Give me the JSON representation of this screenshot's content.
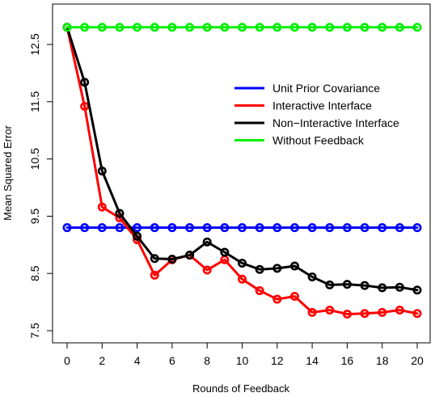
{
  "chart_data": {
    "type": "line",
    "title": "",
    "xlabel": "Rounds of Feedback",
    "ylabel": "Mean Squared Error",
    "xlim": [
      0,
      20
    ],
    "ylim": [
      7.5,
      12.8
    ],
    "xticks": [
      0,
      2,
      4,
      6,
      8,
      10,
      12,
      14,
      16,
      18,
      20
    ],
    "xtick_labels": [
      "0",
      "2",
      "4",
      "6",
      "8",
      "10",
      "12",
      "14",
      "16",
      "18",
      "20"
    ],
    "yticks": [
      7.5,
      8.5,
      9.5,
      10.5,
      11.5,
      12.5
    ],
    "ytick_labels": [
      "7.5",
      "8.5",
      "9.5",
      "10.5",
      "11.5",
      "12.5"
    ],
    "grid": false,
    "legend_position": "right-center",
    "x": [
      0,
      1,
      2,
      3,
      4,
      5,
      6,
      7,
      8,
      9,
      10,
      11,
      12,
      13,
      14,
      15,
      16,
      17,
      18,
      19,
      20
    ],
    "series": [
      {
        "name": "Unit Prior Covariance",
        "color": "#0000ff",
        "values": [
          9.3,
          9.3,
          9.3,
          9.3,
          9.3,
          9.3,
          9.3,
          9.3,
          9.3,
          9.3,
          9.3,
          9.3,
          9.3,
          9.3,
          9.3,
          9.3,
          9.3,
          9.3,
          9.3,
          9.3,
          9.3
        ]
      },
      {
        "name": "Interactive Interface",
        "color": "#ff0000",
        "values": [
          12.8,
          11.42,
          9.66,
          9.47,
          9.09,
          8.47,
          8.74,
          8.82,
          8.56,
          8.74,
          8.4,
          8.2,
          8.05,
          8.1,
          7.82,
          7.86,
          7.79,
          7.8,
          7.82,
          7.86,
          7.8
        ]
      },
      {
        "name": "Non−Interactive Interface",
        "color": "#000000",
        "values": [
          12.8,
          11.84,
          10.29,
          9.55,
          9.15,
          8.76,
          8.75,
          8.82,
          9.05,
          8.87,
          8.68,
          8.57,
          8.59,
          8.63,
          8.44,
          8.3,
          8.31,
          8.29,
          8.25,
          8.26,
          8.21
        ]
      },
      {
        "name": "Without Feedback",
        "color": "#00ee00",
        "values": [
          12.8,
          12.8,
          12.8,
          12.8,
          12.8,
          12.8,
          12.8,
          12.8,
          12.8,
          12.8,
          12.8,
          12.8,
          12.8,
          12.8,
          12.8,
          12.8,
          12.8,
          12.8,
          12.8,
          12.8,
          12.8
        ]
      }
    ]
  }
}
